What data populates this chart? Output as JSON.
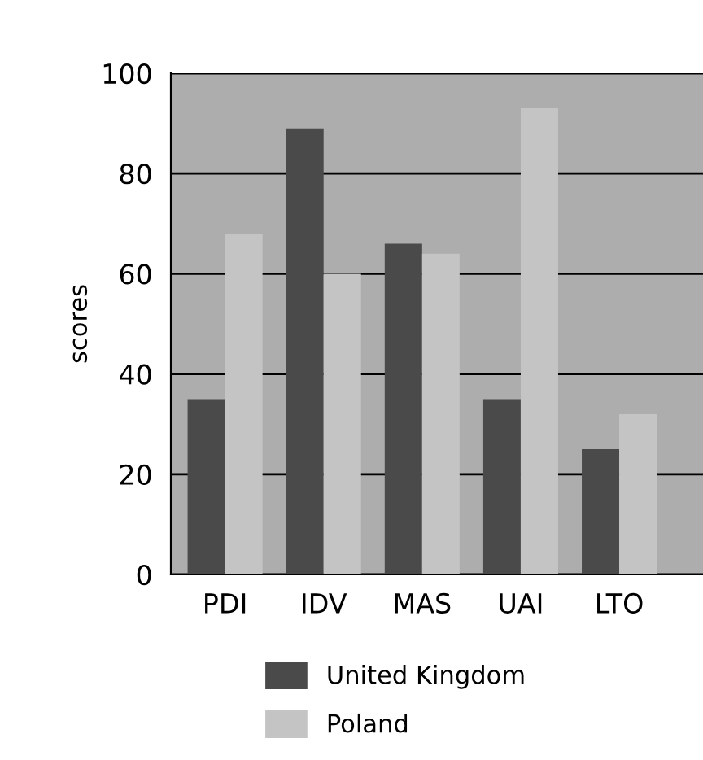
{
  "chart_data": {
    "type": "bar",
    "ylabel": "scores",
    "categories": [
      "PDI",
      "IDV",
      "MAS",
      "UAI",
      "LTO"
    ],
    "series": [
      {
        "name": "United Kingdom",
        "color": "#4a4a4a",
        "values": [
          35,
          89,
          66,
          35,
          25
        ]
      },
      {
        "name": "Poland",
        "color": "#c4c4c4",
        "values": [
          68,
          60,
          64,
          93,
          32
        ]
      }
    ],
    "ylim": [
      0,
      100
    ],
    "yticks": [
      0,
      20,
      40,
      60,
      80,
      100
    ],
    "grid": "y",
    "legend": "bottom"
  }
}
